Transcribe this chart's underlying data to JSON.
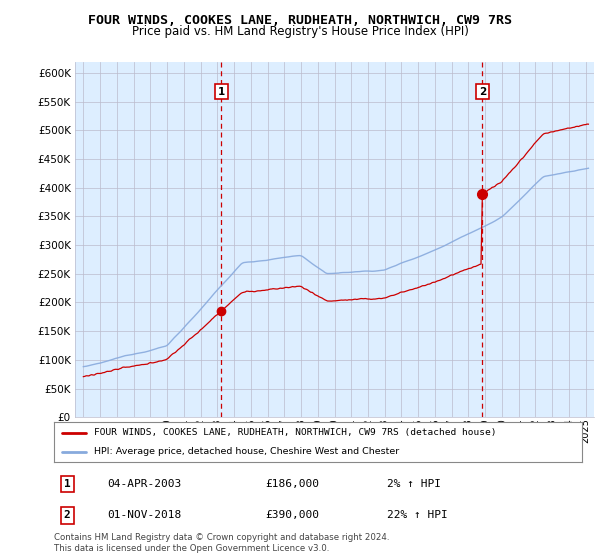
{
  "title": "FOUR WINDS, COOKES LANE, RUDHEATH, NORTHWICH, CW9 7RS",
  "subtitle": "Price paid vs. HM Land Registry's House Price Index (HPI)",
  "ylim": [
    0,
    620000
  ],
  "yticks": [
    0,
    50000,
    100000,
    150000,
    200000,
    250000,
    300000,
    350000,
    400000,
    450000,
    500000,
    550000,
    600000
  ],
  "sale1_t": 2003.25,
  "sale1_price": 186000,
  "sale2_t": 2018.833,
  "sale2_price": 390000,
  "legend_line1": "FOUR WINDS, COOKES LANE, RUDHEATH, NORTHWICH, CW9 7RS (detached house)",
  "legend_line2": "HPI: Average price, detached house, Cheshire West and Chester",
  "table_row1": [
    "1",
    "04-APR-2003",
    "£186,000",
    "2% ↑ HPI"
  ],
  "table_row2": [
    "2",
    "01-NOV-2018",
    "£390,000",
    "22% ↑ HPI"
  ],
  "footnote": "Contains HM Land Registry data © Crown copyright and database right 2024.\nThis data is licensed under the Open Government Licence v3.0.",
  "line_red": "#cc0000",
  "line_blue": "#88aadd",
  "vline_color": "#cc0000",
  "grid_color": "#bbbbcc",
  "chart_bg": "#ddeeff",
  "background": "#ffffff",
  "title_fontsize": 9.5,
  "subtitle_fontsize": 8.5
}
